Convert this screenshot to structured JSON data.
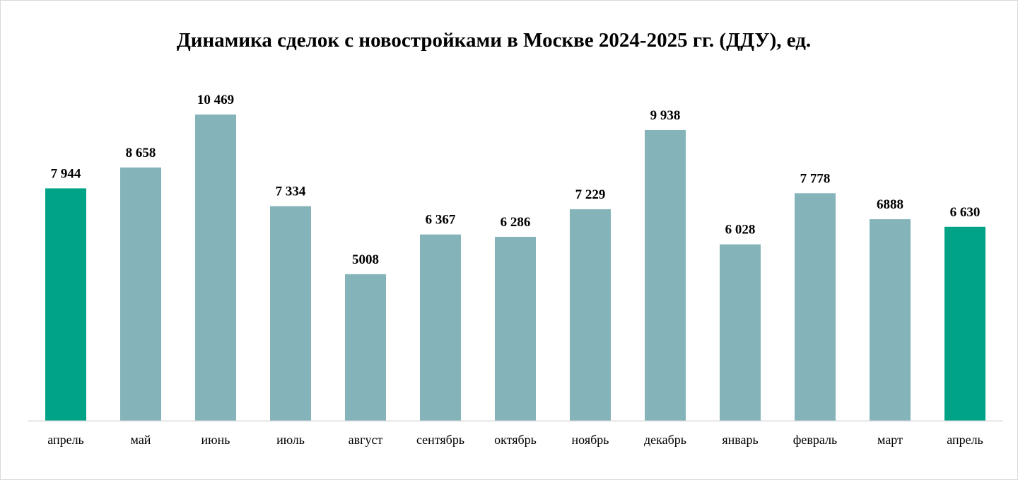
{
  "chart_data": {
    "type": "bar",
    "title": "Динамика сделок с новостройками в Москве 2024-2025 гг. (ДДУ), ед.",
    "xlabel": "",
    "ylabel": "",
    "ylim": [
      0,
      11500
    ],
    "grid": false,
    "legend": "none",
    "categories": [
      "апрель",
      "май",
      "июнь",
      "июль",
      "август",
      "сентябрь",
      "октябрь",
      "ноябрь",
      "декабрь",
      "январь",
      "февраль",
      "март",
      "апрель"
    ],
    "values": [
      7944,
      8658,
      10469,
      7334,
      5008,
      6367,
      6286,
      7229,
      9938,
      6028,
      7778,
      6888,
      6630
    ],
    "value_labels": [
      "7 944",
      "8 658",
      "10 469",
      "7 334",
      "5008",
      "6 367",
      "6 286",
      "7 229",
      "9 938",
      "6 028",
      "7 778",
      "6888",
      "6 630"
    ],
    "colors": [
      "#00a386",
      "#84b4ba",
      "#84b4ba",
      "#84b4ba",
      "#84b4ba",
      "#84b4ba",
      "#84b4ba",
      "#84b4ba",
      "#84b4ba",
      "#84b4ba",
      "#84b4ba",
      "#84b4ba",
      "#00a386"
    ],
    "axis_color": "#d9d9d9"
  }
}
